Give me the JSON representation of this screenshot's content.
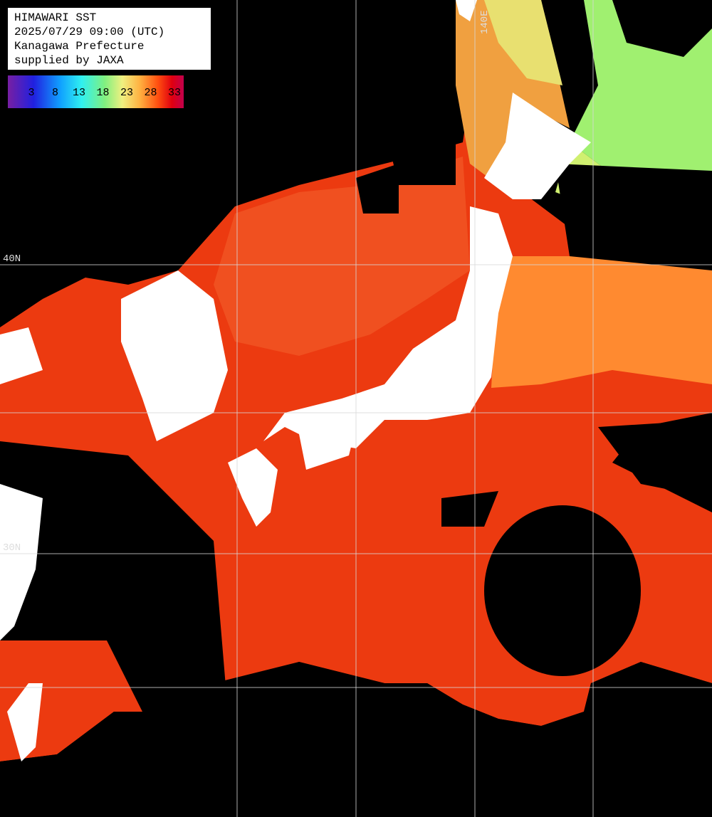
{
  "header": {
    "lines": [
      "HIMAWARI SST",
      "2025/07/29 09:00 (UTC)",
      "Kanagawa Prefecture",
      "supplied by JAXA"
    ]
  },
  "colorbar": {
    "ticks": [
      3,
      8,
      13,
      18,
      23,
      28,
      33
    ]
  },
  "grid_labels": {
    "lat": [
      "40N",
      "30N"
    ],
    "lon": [
      "140E"
    ]
  }
}
